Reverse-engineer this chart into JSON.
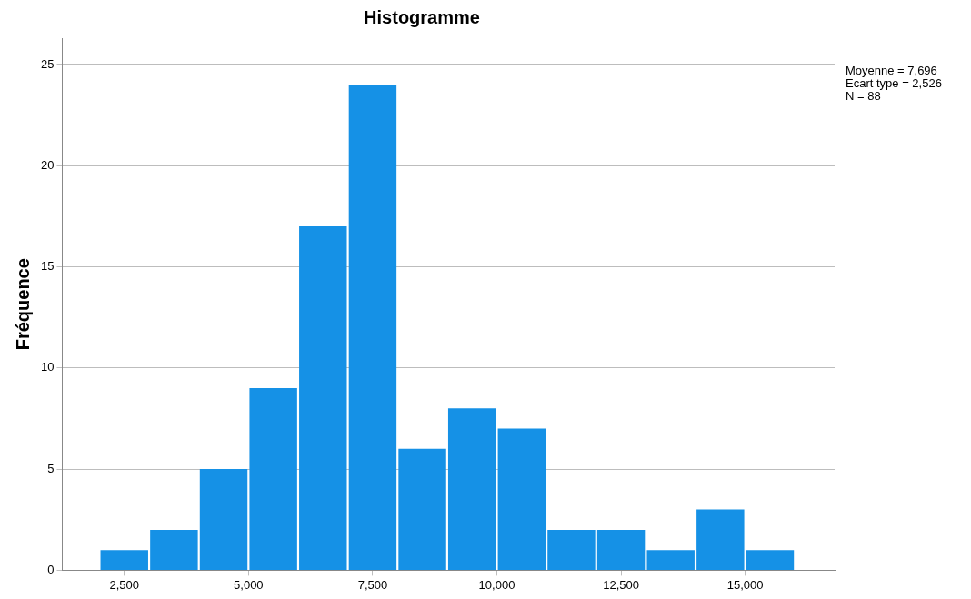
{
  "chart_data": {
    "type": "histogram",
    "title": "Histogramme",
    "ylabel": "Fréquence",
    "bins": [
      2000,
      3000,
      4000,
      5000,
      6000,
      7000,
      8000,
      9000,
      10000,
      11000,
      12000,
      13000,
      14000,
      15000,
      16000
    ],
    "values": [
      1,
      2,
      5,
      9,
      17,
      24,
      6,
      8,
      7,
      2,
      2,
      1,
      3,
      1
    ],
    "color": "#1591e6",
    "xlim": [
      1250,
      16800
    ],
    "xticks": [
      {
        "value": 2500,
        "label": "2,500"
      },
      {
        "value": 5000,
        "label": "5,000"
      },
      {
        "value": 7500,
        "label": "7,500"
      },
      {
        "value": 10000,
        "label": "10,000"
      },
      {
        "value": 12500,
        "label": "12,500"
      },
      {
        "value": 15000,
        "label": "15,000"
      }
    ],
    "ylim": [
      0,
      26.3
    ],
    "yticks": [
      0,
      5,
      10,
      15,
      20,
      25
    ],
    "grid": "y",
    "legend": false,
    "annotations": [
      "Moyenne = 7,696",
      "Ecart type = 2,526",
      "N = 88"
    ]
  }
}
